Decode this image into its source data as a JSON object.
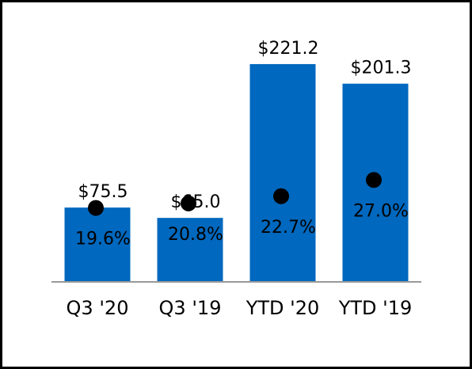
{
  "chart_data": {
    "type": "bar",
    "categories": [
      "Q3 '20",
      "Q3 '19",
      "YTD '20",
      "YTD '19"
    ],
    "series": [
      {
        "values": [
          75.5,
          65.0,
          221.2,
          201.3
        ],
        "value_labels": [
          "$75.5",
          "$65.0",
          "$221.2",
          "$201.3"
        ],
        "color": "#0068BE"
      },
      {
        "type": "scatter",
        "values": [
          19.6,
          20.8,
          22.7,
          27.0
        ],
        "value_labels": [
          "19.6%",
          "20.8%",
          "22.7%",
          "27.0%"
        ],
        "color": "#000000"
      }
    ],
    "title": "",
    "xlabel": "",
    "ylabel": "",
    "ylim": [
      0,
      230
    ],
    "y2lim": [
      0,
      60
    ],
    "grid": false,
    "legend": "none"
  }
}
